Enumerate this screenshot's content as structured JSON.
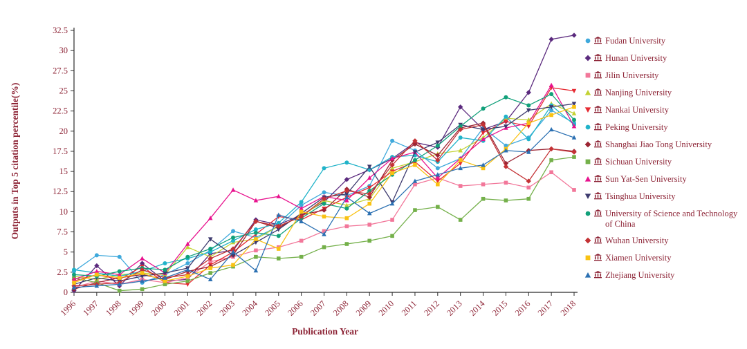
{
  "figure": {
    "ylabel": "Outputs in Top 5 citation percentile(%)",
    "xlabel": "Publication Year"
  },
  "colors": {
    "axis_text": "#8d2436",
    "axis_line": "#2a2a2a",
    "background": "#ffffff"
  },
  "chart_data": {
    "type": "line",
    "title": "",
    "xlabel": "Publication Year",
    "ylabel": "Outputs in Top 5 citation percentile(%)",
    "x": [
      1996,
      1997,
      1998,
      1999,
      2000,
      2001,
      2002,
      2003,
      2004,
      2005,
      2006,
      2007,
      2008,
      2009,
      2010,
      2011,
      2012,
      2013,
      2014,
      2015,
      2016,
      2017,
      2018
    ],
    "ylim": [
      0,
      32.5
    ],
    "yticks": [
      "0",
      "2.5",
      "5",
      "7.5",
      "10",
      "12.5",
      "15",
      "17.5",
      "20",
      "22.5",
      "25",
      "27.5",
      "30",
      "32.5"
    ],
    "grid": false,
    "legend_position": "right",
    "series": [
      {
        "name": "Fudan University",
        "color": "#3FA9DC",
        "marker": "circle",
        "values": [
          2.6,
          4.6,
          4.4,
          1.2,
          2.2,
          3.6,
          5.2,
          7.6,
          6.8,
          8.2,
          10.8,
          12.4,
          12.0,
          13.2,
          18.8,
          17.6,
          15.4,
          16.6,
          20.4,
          18.2,
          19.2,
          22.6,
          21.0
        ]
      },
      {
        "name": "Hunan University",
        "color": "#5B2A7E",
        "marker": "diamond",
        "values": [
          0.2,
          3.3,
          0.8,
          3.6,
          1.4,
          1.6,
          4.8,
          5.2,
          9.0,
          8.4,
          9.6,
          11.2,
          14.0,
          15.2,
          16.6,
          18.6,
          18.0,
          23.0,
          20.2,
          21.2,
          24.8,
          31.4,
          31.9
        ]
      },
      {
        "name": "Jilin University",
        "color": "#F2779A",
        "marker": "square",
        "values": [
          0.6,
          1.4,
          1.0,
          1.6,
          1.2,
          1.8,
          3.8,
          4.4,
          5.2,
          5.6,
          6.4,
          7.6,
          8.2,
          8.4,
          9.0,
          13.4,
          14.2,
          13.2,
          13.4,
          13.6,
          13.0,
          14.9,
          12.7
        ]
      },
      {
        "name": "Nanjing University",
        "color": "#C3D233",
        "marker": "triangle-up",
        "values": [
          2.0,
          1.6,
          2.2,
          2.4,
          2.2,
          5.6,
          4.4,
          6.2,
          6.6,
          8.2,
          9.4,
          11.4,
          10.8,
          11.6,
          15.4,
          16.2,
          17.2,
          17.6,
          19.2,
          21.6,
          21.4,
          23.4,
          22.2
        ]
      },
      {
        "name": "Nankai University",
        "color": "#E62A32",
        "marker": "triangle-down",
        "values": [
          1.4,
          2.2,
          1.6,
          3.2,
          1.2,
          1.0,
          3.4,
          5.0,
          7.2,
          9.4,
          9.0,
          10.4,
          11.8,
          13.0,
          15.0,
          16.2,
          13.8,
          16.0,
          19.8,
          21.2,
          20.6,
          25.4,
          25.0
        ]
      },
      {
        "name": "Peking University",
        "color": "#21B3C9",
        "marker": "circle",
        "values": [
          2.8,
          2.4,
          2.0,
          2.6,
          3.6,
          4.2,
          5.0,
          6.4,
          7.8,
          8.6,
          11.2,
          15.4,
          16.1,
          15.2,
          16.8,
          17.0,
          16.2,
          19.2,
          18.8,
          21.8,
          19.0,
          23.2,
          20.8
        ]
      },
      {
        "name": "Shanghai Jiao Tong University",
        "color": "#9C2433",
        "marker": "diamond",
        "values": [
          0.4,
          1.2,
          1.8,
          2.2,
          1.6,
          2.6,
          3.2,
          4.6,
          8.8,
          8.0,
          9.6,
          10.2,
          12.8,
          11.8,
          16.4,
          18.4,
          17.0,
          20.4,
          21.0,
          16.0,
          17.6,
          17.8,
          17.5
        ]
      },
      {
        "name": "Sichuan University",
        "color": "#74B04A",
        "marker": "square",
        "values": [
          1.8,
          1.2,
          0.2,
          0.4,
          1.0,
          1.4,
          2.4,
          3.2,
          4.4,
          4.2,
          4.4,
          5.6,
          6.0,
          6.4,
          7.0,
          10.2,
          10.6,
          9.0,
          11.6,
          11.4,
          11.6,
          16.4,
          16.8
        ]
      },
      {
        "name": "Sun Yat-Sen University",
        "color": "#E8128E",
        "marker": "triangle-up",
        "values": [
          1.6,
          2.6,
          2.2,
          4.2,
          2.4,
          6.0,
          9.2,
          12.7,
          11.4,
          11.9,
          10.4,
          11.9,
          11.4,
          14.2,
          16.6,
          17.4,
          14.2,
          16.6,
          19.0,
          20.4,
          21.0,
          25.7,
          20.6
        ]
      },
      {
        "name": "Tsinghua University",
        "color": "#3D3A6E",
        "marker": "triangle-down",
        "values": [
          1.0,
          1.8,
          1.4,
          2.0,
          2.4,
          3.0,
          6.6,
          4.6,
          6.2,
          7.8,
          9.8,
          11.8,
          12.2,
          15.6,
          11.2,
          17.4,
          18.6,
          20.8,
          20.2,
          20.6,
          22.6,
          23.0,
          23.4
        ]
      },
      {
        "name": "University of Science and Technology of China",
        "color": "#11A07A",
        "marker": "circle",
        "values": [
          2.2,
          2.0,
          2.6,
          3.0,
          2.8,
          4.4,
          5.4,
          6.8,
          7.4,
          7.0,
          9.2,
          11.0,
          10.4,
          12.6,
          14.6,
          16.4,
          18.2,
          20.6,
          22.8,
          24.2,
          23.2,
          24.6,
          21.4
        ]
      },
      {
        "name": "Wuhan University",
        "color": "#C43235",
        "marker": "diamond",
        "values": [
          0.8,
          1.0,
          1.2,
          2.8,
          1.8,
          2.2,
          4.2,
          5.4,
          8.8,
          8.2,
          9.4,
          11.6,
          12.6,
          12.2,
          15.8,
          18.8,
          16.4,
          20.2,
          20.8,
          15.6,
          13.8,
          17.8,
          17.4
        ]
      },
      {
        "name": "Xiamen University",
        "color": "#F9C213",
        "marker": "square",
        "values": [
          1.2,
          2.2,
          1.8,
          2.4,
          1.4,
          2.0,
          3.0,
          3.4,
          6.6,
          5.4,
          10.0,
          9.4,
          9.2,
          11.0,
          14.8,
          15.8,
          13.4,
          16.4,
          15.4,
          17.8,
          21.0,
          22.0,
          23.0
        ]
      },
      {
        "name": "Zhejiang University",
        "color": "#2B70B2",
        "marker": "triangle-up",
        "values": [
          0.6,
          0.8,
          1.0,
          1.4,
          1.8,
          2.8,
          1.6,
          5.0,
          2.7,
          9.6,
          8.8,
          7.2,
          11.8,
          9.8,
          11.0,
          13.8,
          14.6,
          15.4,
          15.8,
          17.6,
          17.4,
          20.2,
          19.2
        ]
      }
    ]
  }
}
